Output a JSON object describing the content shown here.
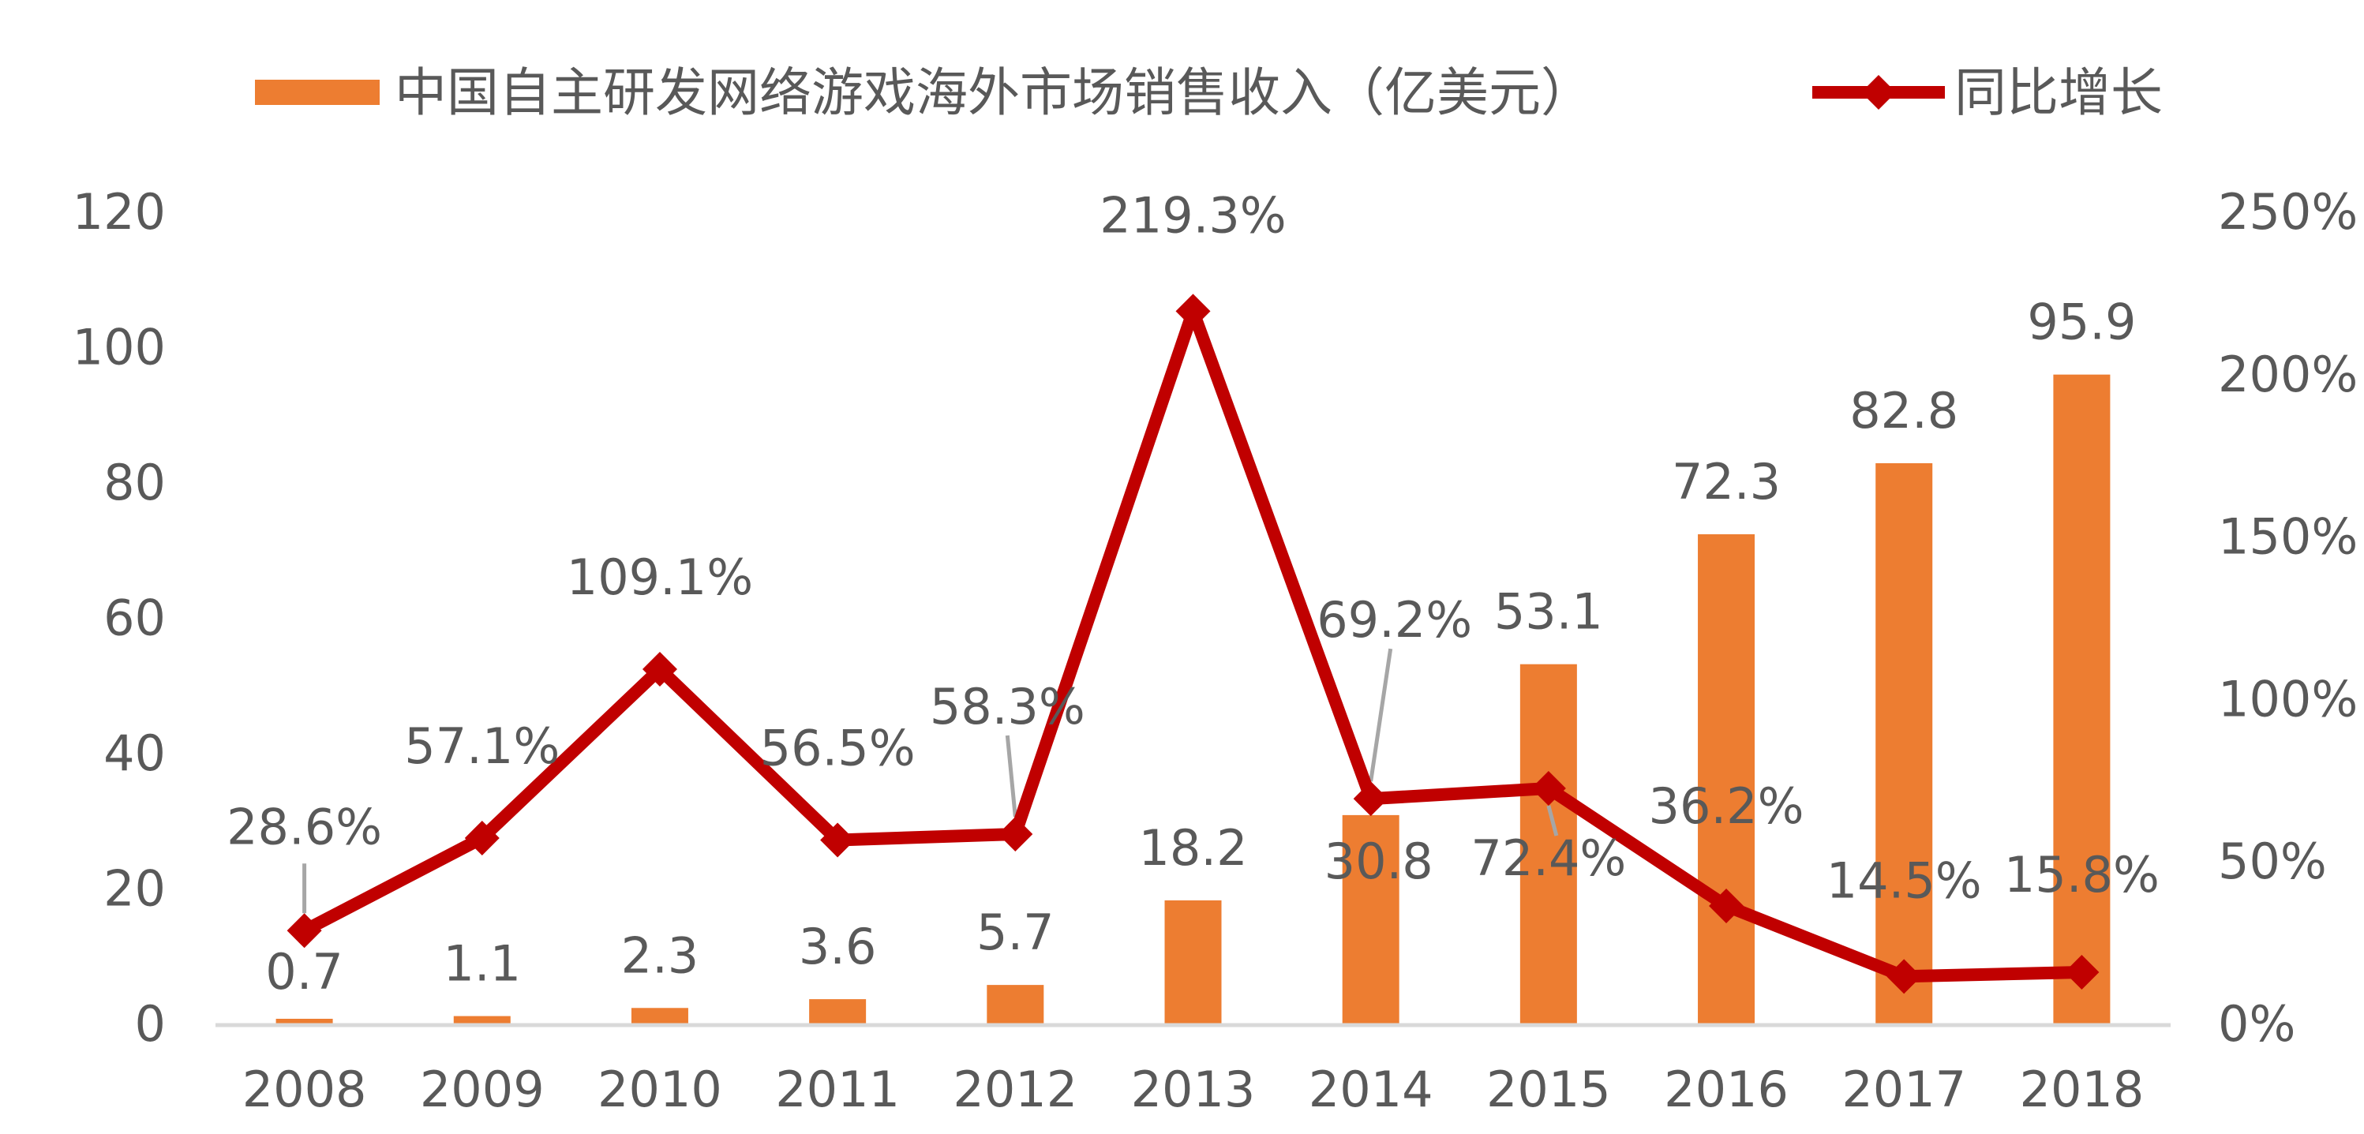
{
  "chart_data": {
    "type": "bar",
    "title": "",
    "categories": [
      "2008",
      "2009",
      "2010",
      "2011",
      "2012",
      "2013",
      "2014",
      "2015",
      "2016",
      "2017",
      "2018"
    ],
    "series": [
      {
        "name": "中国自主研发网络游戏海外市场销售收入（亿美元）",
        "type": "bar",
        "axis": "left",
        "values": [
          0.7,
          1.1,
          2.3,
          3.6,
          5.7,
          18.2,
          30.8,
          53.1,
          72.3,
          82.8,
          95.9
        ],
        "labels": [
          "0.7",
          "1.1",
          "2.3",
          "3.6",
          "5.7",
          "18.2",
          "30.8",
          "53.1",
          "72.3",
          "82.8",
          "95.9"
        ],
        "color": "#ED7D31"
      },
      {
        "name": "同比增长",
        "type": "line",
        "marker": "diamond",
        "axis": "right",
        "values": [
          28.6,
          57.1,
          109.1,
          56.5,
          58.3,
          219.3,
          69.2,
          72.4,
          36.2,
          14.5,
          15.8
        ],
        "labels": [
          "28.6%",
          "57.1%",
          "109.1%",
          "56.5%",
          "58.3%",
          "219.3%",
          "69.2%",
          "72.4%",
          "36.2%",
          "14.5%",
          "15.8%"
        ],
        "color": "#C00000"
      }
    ],
    "y_left": {
      "min": 0,
      "max": 120,
      "ticks": [
        "0",
        "20",
        "40",
        "60",
        "80",
        "100",
        "120"
      ]
    },
    "y_right": {
      "min": 0,
      "max": 250,
      "ticks": [
        "0%",
        "50%",
        "100%",
        "150%",
        "200%",
        "250%"
      ]
    },
    "legend_position": "top",
    "grid": false,
    "axis_line_color": "#D9D9D9",
    "leader_line_color": "#A6A6A6",
    "text_color": "#595959"
  }
}
